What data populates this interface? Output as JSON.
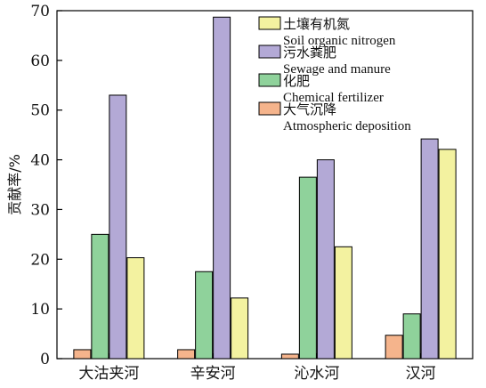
{
  "chart_data": {
    "type": "bar",
    "title": "",
    "xlabel": "",
    "ylabel": "贡献率/%",
    "ylim": [
      0,
      70
    ],
    "yticks": [
      0,
      10,
      20,
      30,
      40,
      50,
      60,
      70
    ],
    "grid": false,
    "legend_position": "top-right",
    "categories": [
      "大沽夹河",
      "辛安河",
      "沁水河",
      "汉河"
    ],
    "series": [
      {
        "name_cn": "大气沉降",
        "name_en": "Atmospheric deposition",
        "color": "#F5B48C",
        "values": [
          1.8,
          1.8,
          0.9,
          4.7
        ]
      },
      {
        "name_cn": "化肥",
        "name_en": "Chemical fertilizer",
        "color": "#8FD29B",
        "values": [
          25.0,
          17.5,
          36.5,
          9.0
        ]
      },
      {
        "name_cn": "污水粪肥",
        "name_en": "Sewage and manure",
        "color": "#B3A9D6",
        "values": [
          53.0,
          68.7,
          40.0,
          44.2
        ]
      },
      {
        "name_cn": "土壤有机氮",
        "name_en": "Soil organic nitrogen",
        "color": "#F3F2A0",
        "values": [
          20.3,
          12.2,
          22.5,
          42.1
        ]
      }
    ],
    "legend_order": [
      3,
      2,
      1,
      0
    ]
  }
}
